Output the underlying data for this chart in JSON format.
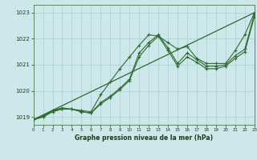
{
  "background_color": "#cce8ea",
  "grid_color": "#aacfcf",
  "line_color": "#2d6a2d",
  "title": "Graphe pression niveau de la mer (hPa)",
  "xlim": [
    0,
    23
  ],
  "ylim": [
    1018.7,
    1023.3
  ],
  "yticks": [
    1019,
    1020,
    1021,
    1022,
    1023
  ],
  "xticks": [
    0,
    1,
    2,
    3,
    4,
    5,
    6,
    7,
    8,
    9,
    10,
    11,
    12,
    13,
    14,
    15,
    16,
    17,
    18,
    19,
    20,
    21,
    22,
    23
  ],
  "lines": [
    {
      "x": [
        0,
        1,
        2,
        3,
        4,
        5,
        6,
        7,
        8,
        9,
        10,
        11,
        12,
        13,
        14,
        15,
        16,
        17,
        18,
        19,
        20,
        21,
        22,
        23
      ],
      "y": [
        1018.9,
        1019.05,
        1019.25,
        1019.35,
        1019.3,
        1019.25,
        1019.2,
        1019.85,
        1020.35,
        1020.85,
        1021.3,
        1021.75,
        1022.15,
        1022.1,
        1021.85,
        1021.6,
        1021.7,
        1021.25,
        1021.05,
        1021.05,
        1021.05,
        1021.55,
        1022.15,
        1023.0
      ]
    },
    {
      "x": [
        0,
        1,
        2,
        3,
        4,
        5,
        6,
        7,
        8,
        9,
        10,
        11,
        12,
        13,
        14,
        15,
        16,
        17,
        18,
        19,
        20,
        21,
        22,
        23
      ],
      "y": [
        1018.9,
        1019.0,
        1019.25,
        1019.3,
        1019.3,
        1019.2,
        1019.15,
        1019.55,
        1019.8,
        1020.1,
        1020.45,
        1021.45,
        1021.85,
        1022.15,
        1021.65,
        1021.05,
        1021.45,
        1021.2,
        1020.95,
        1020.95,
        1021.0,
        1021.35,
        1021.6,
        1022.95
      ]
    },
    {
      "x": [
        0,
        1,
        2,
        3,
        4,
        5,
        6,
        7,
        8,
        9,
        10,
        11,
        12,
        13,
        14,
        15,
        16,
        17,
        18,
        19,
        20,
        21,
        22,
        23
      ],
      "y": [
        1018.9,
        1019.0,
        1019.2,
        1019.3,
        1019.3,
        1019.2,
        1019.15,
        1019.5,
        1019.75,
        1020.05,
        1020.4,
        1021.3,
        1021.75,
        1022.1,
        1021.55,
        1020.95,
        1021.3,
        1021.1,
        1020.85,
        1020.85,
        1020.95,
        1021.25,
        1021.5,
        1022.85
      ]
    },
    {
      "x": [
        0,
        23
      ],
      "y": [
        1018.9,
        1023.0
      ]
    }
  ]
}
